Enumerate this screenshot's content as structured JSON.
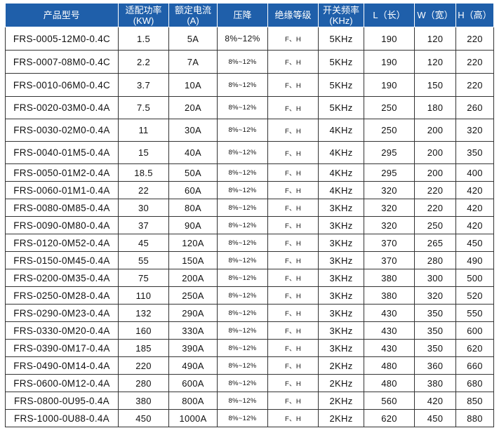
{
  "table": {
    "headers": [
      "产品型号",
      "适配功率\n(KW)",
      "额定电流\n(A)",
      "压降",
      "绝缘等级",
      "开关频率\n(KHz)",
      "L（长）",
      "W（宽）",
      "H（高）"
    ],
    "header_color": "#1f5faa",
    "rows": [
      [
        "FRS-0005-12M0-0.4C",
        "1.5",
        "5A",
        "8%~12%",
        "F、H",
        "5KHz",
        "190",
        "120",
        "220"
      ],
      [
        "FRS-0007-08M0-0.4C",
        "2.2",
        "7A",
        "8%~12%",
        "F、H",
        "5KHz",
        "190",
        "120",
        "220"
      ],
      [
        "FRS-0010-06M0-0.4C",
        "3.7",
        "10A",
        "8%~12%",
        "F、H",
        "5KHz",
        "190",
        "150",
        "220"
      ],
      [
        "FRS-0020-03M0-0.4A",
        "7.5",
        "20A",
        "8%~12%",
        "F、H",
        "5KHz",
        "250",
        "180",
        "260"
      ],
      [
        "FRS-0030-02M0-0.4A",
        "11",
        "30A",
        "8%~12%",
        "F、H",
        "4KHz",
        "250",
        "200",
        "320"
      ],
      [
        "FRS-0040-01M5-0.4A",
        "15",
        "40A",
        "8%~12%",
        "F、H",
        "4KHz",
        "295",
        "200",
        "350"
      ],
      [
        "FRS-0050-01M2-0.4A",
        "18.5",
        "50A",
        "8%~12%",
        "F、H",
        "4KHz",
        "295",
        "200",
        "400"
      ],
      [
        "FRS-0060-01M1-0.4A",
        "22",
        "60A",
        "8%~12%",
        "F、H",
        "4KHz",
        "320",
        "220",
        "420"
      ],
      [
        "FRS-0080-0M85-0.4A",
        "30",
        "80A",
        "8%~12%",
        "F、H",
        "3KHz",
        "320",
        "220",
        "420"
      ],
      [
        "FRS-0090-0M80-0.4A",
        "37",
        "90A",
        "8%~12%",
        "F、H",
        "3KHz",
        "320",
        "250",
        "420"
      ],
      [
        "FRS-0120-0M52-0.4A",
        "45",
        "120A",
        "8%~12%",
        "F、H",
        "3KHz",
        "370",
        "265",
        "450"
      ],
      [
        "FRS-0150-0M45-0.4A",
        "55",
        "150A",
        "8%~12%",
        "F、H",
        "3KHz",
        "370",
        "280",
        "490"
      ],
      [
        "FRS-0200-0M35-0.4A",
        "75",
        "200A",
        "8%~12%",
        "F、H",
        "3KHz",
        "380",
        "300",
        "500"
      ],
      [
        "FRS-0250-0M28-0.4A",
        "110",
        "250A",
        "8%~12%",
        "F、H",
        "3KHz",
        "380",
        "320",
        "520"
      ],
      [
        "FRS-0290-0M23-0.4A",
        "132",
        "290A",
        "8%~12%",
        "F、H",
        "3KHz",
        "430",
        "350",
        "550"
      ],
      [
        "FRS-0330-0M20-0.4A",
        "160",
        "330A",
        "8%~12%",
        "F、H",
        "3KHz",
        "430",
        "350",
        "600"
      ],
      [
        "FRS-0390-0M17-0.4A",
        "185",
        "390A",
        "8%~12%",
        "F、H",
        "3KHz",
        "430",
        "350",
        "620"
      ],
      [
        "FRS-0490-0M14-0.4A",
        "220",
        "490A",
        "8%~12%",
        "F、H",
        "2KHz",
        "480",
        "360",
        "660"
      ],
      [
        "FRS-0600-0M12-0.4A",
        "280",
        "600A",
        "8%~12%",
        "F、H",
        "2KHz",
        "480",
        "380",
        "680"
      ],
      [
        "FRS-0800-0U95-0.4A",
        "380",
        "800A",
        "8%~12%",
        "F、H",
        "2KHz",
        "560",
        "420",
        "850"
      ],
      [
        "FRS-1000-0U88-0.4A",
        "450",
        "1000A",
        "8%~12%",
        "F、H",
        "2KHz",
        "620",
        "450",
        "880"
      ]
    ]
  }
}
